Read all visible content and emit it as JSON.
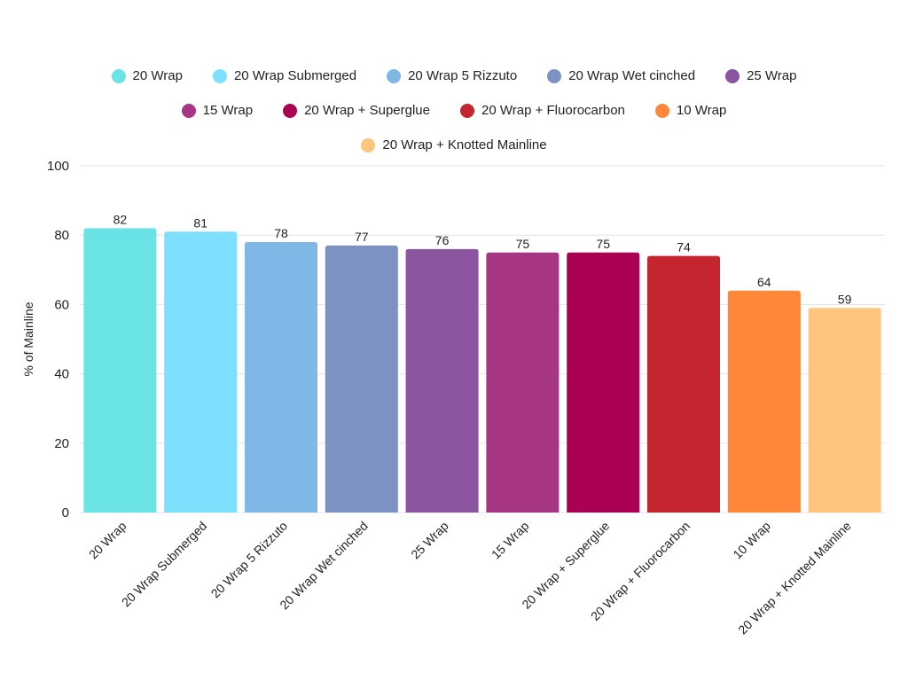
{
  "chart_data": {
    "type": "bar",
    "ylabel": "% of Mainline",
    "xlabel": "",
    "ylim": [
      0,
      100
    ],
    "yticks": [
      0,
      20,
      40,
      60,
      80,
      100
    ],
    "grid": true,
    "legend_position": "top",
    "categories": [
      "20 Wrap",
      "20 Wrap Submerged",
      "20 Wrap 5 Rizzuto",
      "20 Wrap Wet cinched",
      "25 Wrap",
      "15 Wrap",
      "20 Wrap + Superglue",
      "20 Wrap + Fluorocarbon",
      "10 Wrap",
      "20 Wrap + Knotted Mainline"
    ],
    "values": [
      82,
      81,
      78,
      77,
      76,
      75,
      75,
      74,
      64,
      59
    ],
    "value_labels": [
      "82",
      "81",
      "78",
      "77",
      "76",
      "75",
      "75",
      "74",
      "64",
      "59"
    ],
    "colors": [
      "#6ae3e6",
      "#7ee0fc",
      "#7fb8e6",
      "#7b92c3",
      "#8b55a0",
      "#a63583",
      "#ab0153",
      "#c4252f",
      "#fe873a",
      "#fec57f"
    ],
    "legend_rows": [
      [
        0,
        1,
        2,
        3,
        4
      ],
      [
        5,
        6,
        7,
        8
      ],
      [
        9
      ]
    ]
  }
}
